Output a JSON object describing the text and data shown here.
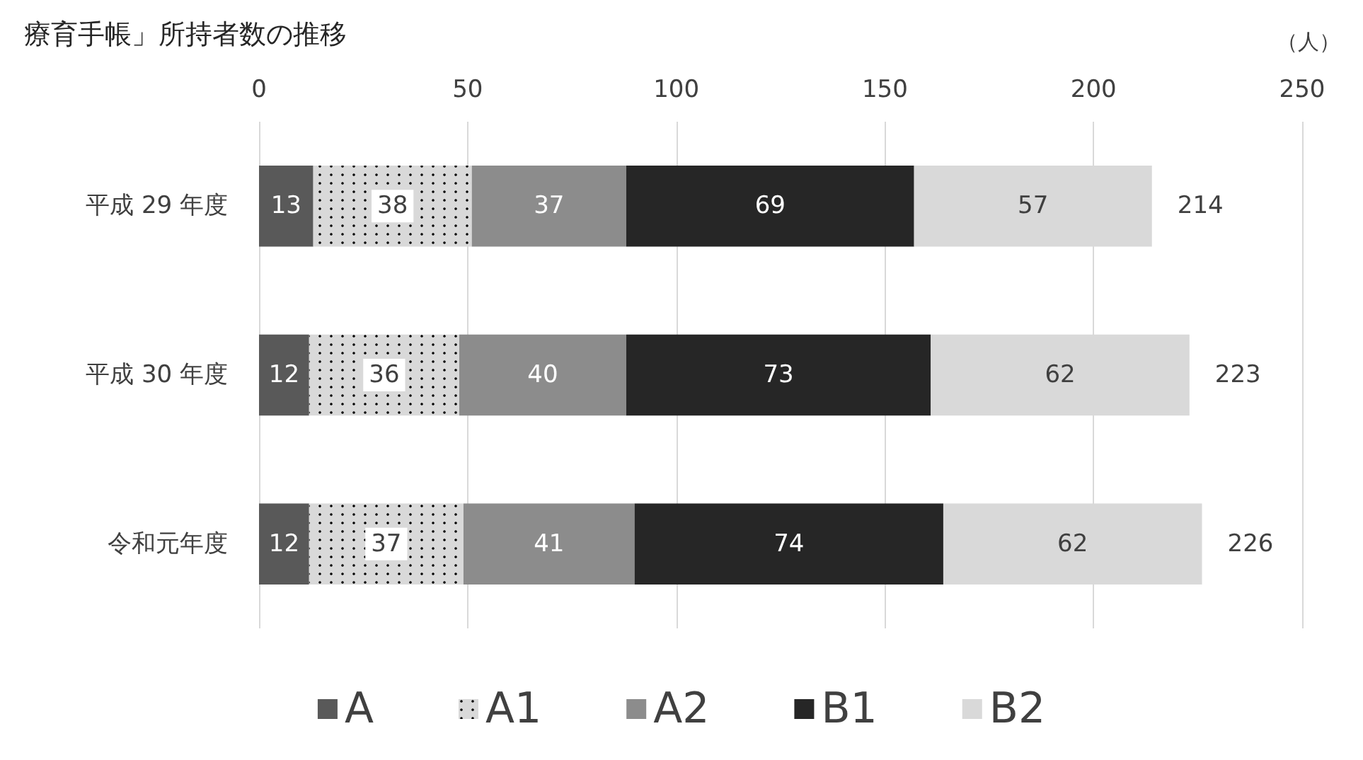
{
  "chart_data": {
    "type": "bar",
    "orientation": "horizontal",
    "stacked": true,
    "title": "療育手帳」所持者数の推移",
    "xlabel": "（人）",
    "categories": [
      "平成 29 年度",
      "平成 30 年度",
      "令和元年度"
    ],
    "series": [
      {
        "name": "A",
        "color": "#595959",
        "values": [
          13,
          12,
          12
        ]
      },
      {
        "name": "A1",
        "color": "#d9d9d9",
        "values": [
          38,
          36,
          37
        ]
      },
      {
        "name": "A2",
        "color": "#8c8c8c",
        "values": [
          37,
          40,
          41
        ]
      },
      {
        "name": "B1",
        "color": "#262626",
        "values": [
          69,
          73,
          74
        ]
      },
      {
        "name": "B2",
        "color": "#d9d9d9",
        "values": [
          57,
          62,
          62
        ]
      }
    ],
    "totals": [
      "214",
      "223",
      "226"
    ],
    "xlim": [
      0,
      250
    ],
    "xticks": [
      0,
      50,
      100,
      150,
      200,
      250
    ],
    "grid": "x",
    "legend": "bottom",
    "data_labels": true
  }
}
